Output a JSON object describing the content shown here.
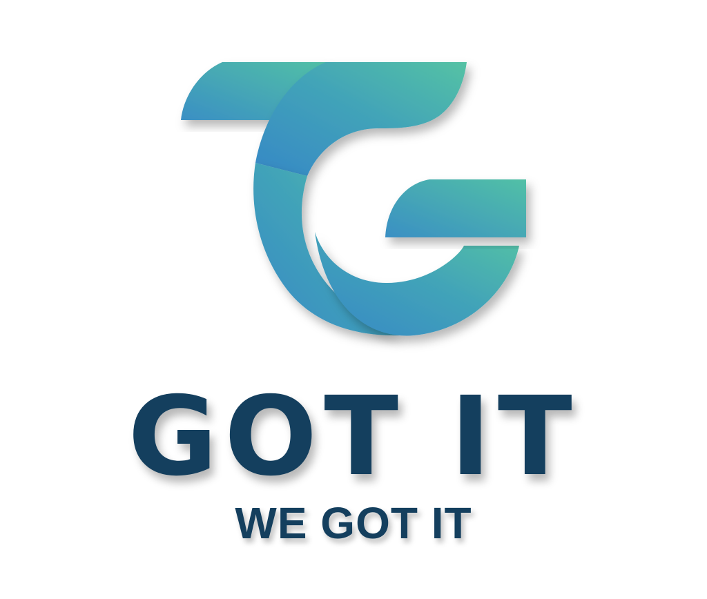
{
  "logo": {
    "brand_name": "GOT IT",
    "tagline": "WE GOT IT",
    "mark_icon": "tg-monogram-icon"
  },
  "colors": {
    "background": "#ffffff",
    "text": "#143f5e",
    "gradient_teal": "#52c0a6",
    "gradient_blue": "#3a8fc4"
  }
}
